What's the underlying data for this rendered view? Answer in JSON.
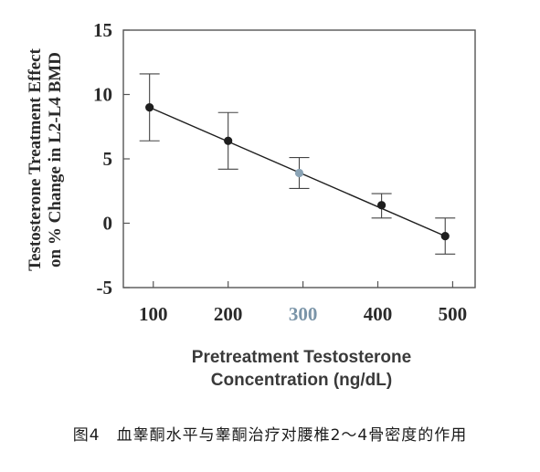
{
  "chart_data": {
    "type": "scatter",
    "title": "",
    "xlabel_line1": "Pretreatment Testosterone",
    "xlabel_line2": "Concentration (ng/dL)",
    "ylabel_line1": "Testosterone Treatment Effect",
    "ylabel_line2": "on % Change in L2-L4 BMD",
    "xlim": [
      60,
      530
    ],
    "ylim": [
      -5,
      15
    ],
    "xticks": [
      100,
      200,
      300,
      400,
      500
    ],
    "yticks": [
      15,
      10,
      5,
      0,
      -5
    ],
    "xtick_labels": [
      "100",
      "200",
      "300",
      "400",
      "500"
    ],
    "ytick_labels": [
      "15",
      "10",
      "5",
      "0",
      "-5"
    ],
    "points": [
      {
        "x": 95,
        "y": 9.0,
        "err_low": 6.4,
        "err_high": 11.6
      },
      {
        "x": 200,
        "y": 6.4,
        "err_low": 4.2,
        "err_high": 8.6
      },
      {
        "x": 295,
        "y": 3.9,
        "err_low": 2.7,
        "err_high": 5.1
      },
      {
        "x": 405,
        "y": 1.4,
        "err_low": 0.4,
        "err_high": 2.3
      },
      {
        "x": 490,
        "y": -1.0,
        "err_low": -2.4,
        "err_high": 0.4
      }
    ],
    "fit_line": {
      "x": [
        95,
        490
      ],
      "y": [
        9.0,
        -1.0
      ]
    },
    "colors": {
      "marker": "#1e1e1e",
      "highlight_marker": "#8aa3b5",
      "line": "#1e1e1e",
      "axes": "#555555"
    }
  },
  "caption": "图4　血睾酮水平与睾酮治疗对腰椎2～4骨密度的作用"
}
